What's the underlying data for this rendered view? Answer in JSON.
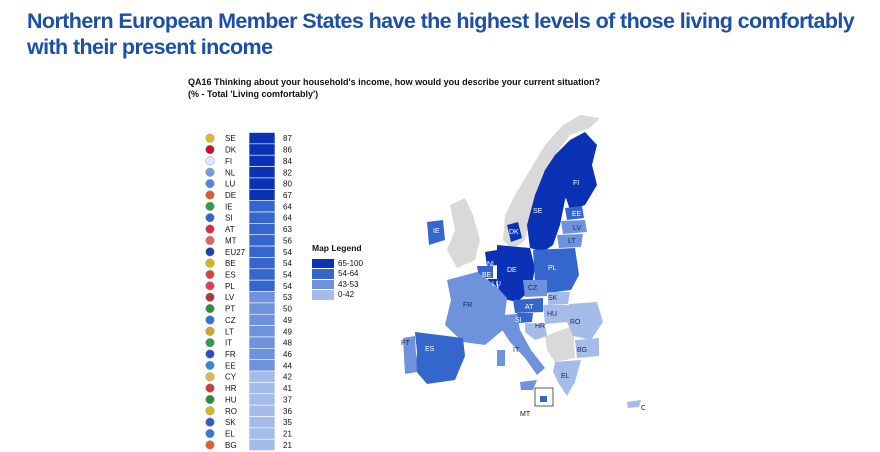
{
  "title": "Northern European Member States have the highest levels of those living comfortably with their present income",
  "question": {
    "line1": "QA16 Thinking about your household's income, how would you describe your current situation?",
    "line2": "(% - Total 'Living comfortably')"
  },
  "chart_data": {
    "type": "bar",
    "orientation": "horizontal",
    "categories": [
      "SE",
      "DK",
      "FI",
      "NL",
      "LU",
      "DE",
      "IE",
      "SI",
      "AT",
      "MT",
      "EU27",
      "BE",
      "ES",
      "PL",
      "LV",
      "PT",
      "CZ",
      "LT",
      "IT",
      "FR",
      "EE",
      "CY",
      "HR",
      "HU",
      "RO",
      "SK",
      "EL",
      "BG"
    ],
    "values": [
      87,
      86,
      84,
      82,
      80,
      67,
      64,
      64,
      63,
      56,
      54,
      54,
      54,
      54,
      53,
      50,
      49,
      49,
      48,
      46,
      44,
      42,
      41,
      37,
      36,
      35,
      21,
      21
    ],
    "value_labels": true
  },
  "legend": {
    "title": "Map Legend",
    "items": [
      {
        "label": "65-100",
        "color": "#0b31b5"
      },
      {
        "label": "54-64",
        "color": "#3566cc"
      },
      {
        "label": "43-53",
        "color": "#6e92dc"
      },
      {
        "label": "0-42",
        "color": "#a5bcea"
      }
    ]
  },
  "map": {
    "labels": [
      "FI",
      "SE",
      "EE",
      "LV",
      "LT",
      "DK",
      "IE",
      "NL",
      "BE",
      "LU",
      "DE",
      "PL",
      "CZ",
      "SK",
      "HU",
      "AT",
      "SI",
      "HR",
      "RO",
      "BG",
      "FR",
      "PT",
      "ES",
      "IT",
      "EL",
      "MT",
      "CY"
    ],
    "no_data_color": "#d9d9d9"
  }
}
